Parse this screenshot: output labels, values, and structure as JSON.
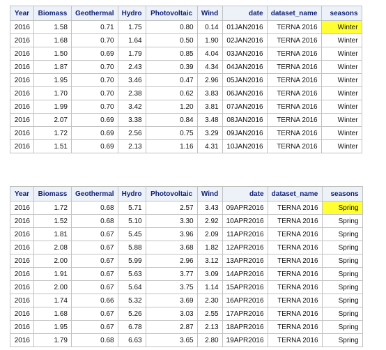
{
  "columns": [
    "Year",
    "Biomass",
    "Geothermal",
    "Hydro",
    "Photovoltaic",
    "Wind",
    "date",
    "dataset_name",
    "seasons"
  ],
  "highlight_color": "#ffff33",
  "tables": [
    {
      "rows": [
        [
          "2016",
          "1.58",
          "0.71",
          "1.75",
          "0.80",
          "0.14",
          "01JAN2016",
          "TERNA 2016",
          "Winter"
        ],
        [
          "2016",
          "1.68",
          "0.70",
          "1.64",
          "0.50",
          "1.90",
          "02JAN2016",
          "TERNA 2016",
          "Winter"
        ],
        [
          "2016",
          "1.50",
          "0.69",
          "1.79",
          "0.85",
          "4.04",
          "03JAN2016",
          "TERNA 2016",
          "Winter"
        ],
        [
          "2016",
          "1.87",
          "0.70",
          "2.43",
          "0.39",
          "4.34",
          "04JAN2016",
          "TERNA 2016",
          "Winter"
        ],
        [
          "2016",
          "1.95",
          "0.70",
          "3.46",
          "0.47",
          "2.96",
          "05JAN2016",
          "TERNA 2016",
          "Winter"
        ],
        [
          "2016",
          "1.70",
          "0.70",
          "2.38",
          "0.62",
          "3.83",
          "06JAN2016",
          "TERNA 2016",
          "Winter"
        ],
        [
          "2016",
          "1.99",
          "0.70",
          "3.42",
          "1.20",
          "3.81",
          "07JAN2016",
          "TERNA 2016",
          "Winter"
        ],
        [
          "2016",
          "2.07",
          "0.69",
          "3.38",
          "0.84",
          "3.48",
          "08JAN2016",
          "TERNA 2016",
          "Winter"
        ],
        [
          "2016",
          "1.72",
          "0.69",
          "2.56",
          "0.75",
          "3.29",
          "09JAN2016",
          "TERNA 2016",
          "Winter"
        ],
        [
          "2016",
          "1.51",
          "0.69",
          "2.13",
          "1.16",
          "4.31",
          "10JAN2016",
          "TERNA 2016",
          "Winter"
        ]
      ]
    },
    {
      "rows": [
        [
          "2016",
          "1.72",
          "0.68",
          "5.71",
          "2.57",
          "3.43",
          "09APR2016",
          "TERNA 2016",
          "Spring"
        ],
        [
          "2016",
          "1.52",
          "0.68",
          "5.10",
          "3.30",
          "2.92",
          "10APR2016",
          "TERNA 2016",
          "Spring"
        ],
        [
          "2016",
          "1.81",
          "0.67",
          "5.45",
          "3.96",
          "2.09",
          "11APR2016",
          "TERNA 2016",
          "Spring"
        ],
        [
          "2016",
          "2.08",
          "0.67",
          "5.88",
          "3.68",
          "1.82",
          "12APR2016",
          "TERNA 2016",
          "Spring"
        ],
        [
          "2016",
          "2.00",
          "0.67",
          "5.99",
          "2.96",
          "3.12",
          "13APR2016",
          "TERNA 2016",
          "Spring"
        ],
        [
          "2016",
          "1.91",
          "0.67",
          "5.63",
          "3.77",
          "3.09",
          "14APR2016",
          "TERNA 2016",
          "Spring"
        ],
        [
          "2016",
          "2.00",
          "0.67",
          "5.64",
          "3.75",
          "1.14",
          "15APR2016",
          "TERNA 2016",
          "Spring"
        ],
        [
          "2016",
          "1.74",
          "0.66",
          "5.32",
          "3.69",
          "2.30",
          "16APR2016",
          "TERNA 2016",
          "Spring"
        ],
        [
          "2016",
          "1.68",
          "0.67",
          "5.26",
          "3.03",
          "2.55",
          "17APR2016",
          "TERNA 2016",
          "Spring"
        ],
        [
          "2016",
          "1.95",
          "0.67",
          "6.78",
          "2.87",
          "2.13",
          "18APR2016",
          "TERNA 2016",
          "Spring"
        ],
        [
          "2016",
          "1.79",
          "0.68",
          "6.63",
          "3.65",
          "2.80",
          "19APR2016",
          "TERNA 2016",
          "Spring"
        ]
      ]
    }
  ]
}
